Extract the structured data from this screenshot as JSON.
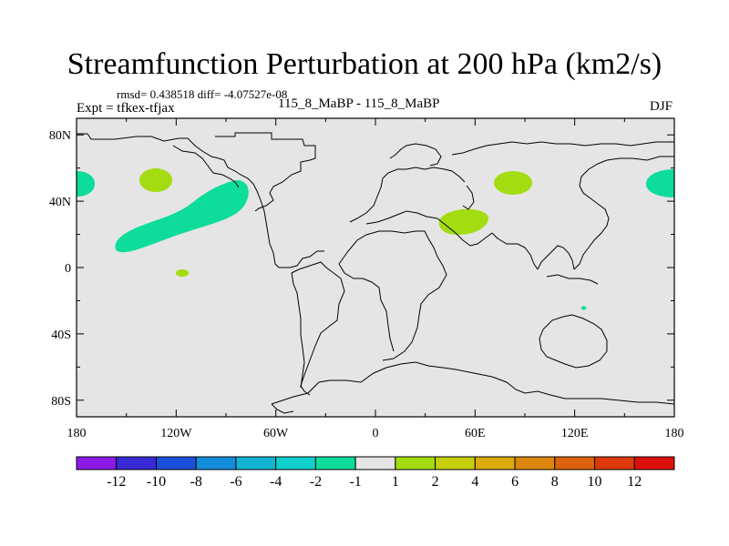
{
  "header": {
    "title": "Streamfunction Perturbation at 200 hPa (km2/s)",
    "stats": "rmsd= 0.438518 diff= -4.07527e-08",
    "experiment": "Expt = tfkex-tfjax",
    "case": "115_8_MaBP - 115_8_MaBP",
    "season": "DJF"
  },
  "map": {
    "lon_range": [
      -180,
      180
    ],
    "lat_range": [
      -90,
      90
    ],
    "lon_ticks": [
      {
        "lon": -180,
        "label": "180"
      },
      {
        "lon": -120,
        "label": "120W"
      },
      {
        "lon": -60,
        "label": "60W"
      },
      {
        "lon": 0,
        "label": "0"
      },
      {
        "lon": 60,
        "label": "60E"
      },
      {
        "lon": 120,
        "label": "120E"
      },
      {
        "lon": 180,
        "label": "180"
      }
    ],
    "lat_ticks": [
      {
        "lat": 80,
        "label": "80N"
      },
      {
        "lat": 40,
        "label": "40N"
      },
      {
        "lat": 0,
        "label": "0"
      },
      {
        "lat": -40,
        "label": "40S"
      },
      {
        "lat": -80,
        "label": "80S"
      }
    ],
    "background_color": "#e5e5e5",
    "coastline_color": "#000000"
  },
  "colorbar": {
    "labels": [
      "-12",
      "-10",
      "-8",
      "-6",
      "-4",
      "-2",
      "-1",
      "1",
      "2",
      "4",
      "6",
      "8",
      "10",
      "12"
    ],
    "colors": [
      "#8c1ae6",
      "#3a2ad6",
      "#1c4fd8",
      "#148cdc",
      "#10b4d2",
      "#10cfcc",
      "#0edc9a",
      "#e5e5e5",
      "#a3dc10",
      "#c6cf0c",
      "#dcaa0c",
      "#dc870c",
      "#dc620c",
      "#dc3a0c",
      "#dc100c"
    ]
  }
}
